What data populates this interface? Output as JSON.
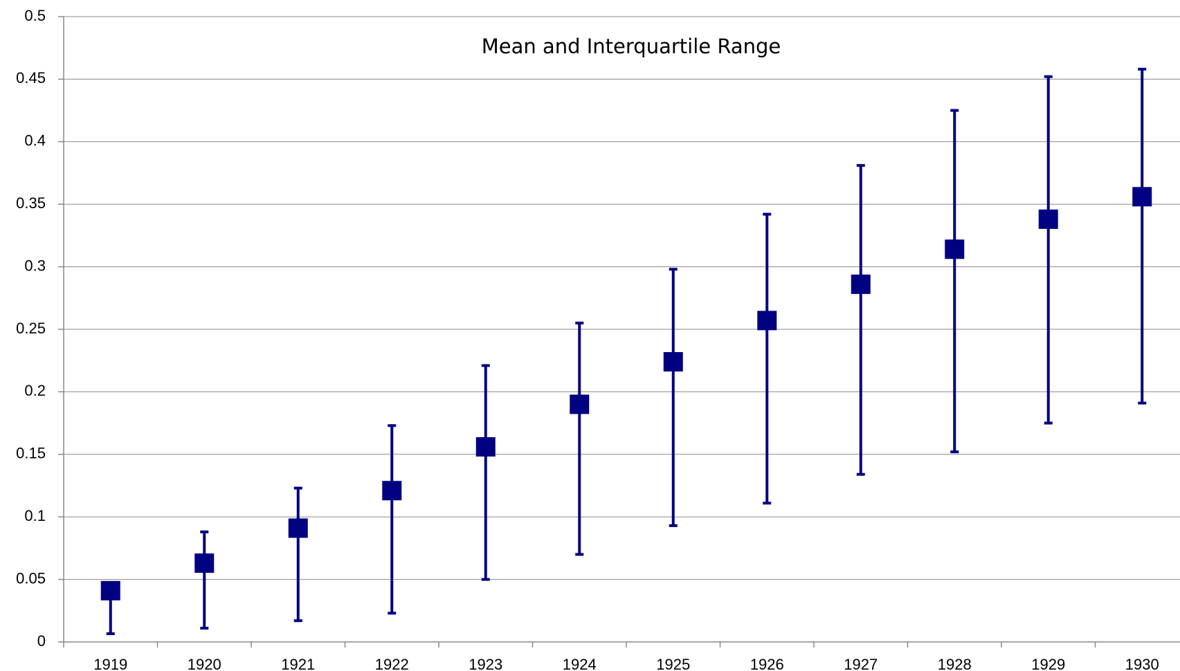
{
  "chart_data": {
    "type": "errorbar",
    "title": "Mean and Interquartile Range",
    "categories": [
      "1919",
      "1920",
      "1921",
      "1922",
      "1923",
      "1924",
      "1925",
      "1926",
      "1927",
      "1928",
      "1929",
      "1930"
    ],
    "values": [
      0.041,
      0.063,
      0.091,
      0.121,
      0.156,
      0.19,
      0.224,
      0.257,
      0.286,
      0.314,
      0.338,
      0.356
    ],
    "lower": [
      0.0066,
      0.011,
      0.017,
      0.023,
      0.05,
      0.07,
      0.093,
      0.111,
      0.134,
      0.152,
      0.175,
      0.191
    ],
    "upper": [
      0.045,
      0.088,
      0.123,
      0.173,
      0.221,
      0.255,
      0.298,
      0.342,
      0.381,
      0.425,
      0.452,
      0.458
    ],
    "color": "#000080",
    "ylim": [
      0,
      0.5
    ],
    "yticks": [
      0,
      0.05,
      0.1,
      0.15,
      0.2,
      0.25,
      0.3,
      0.35,
      0.4,
      0.45,
      0.5
    ],
    "grid": true
  }
}
